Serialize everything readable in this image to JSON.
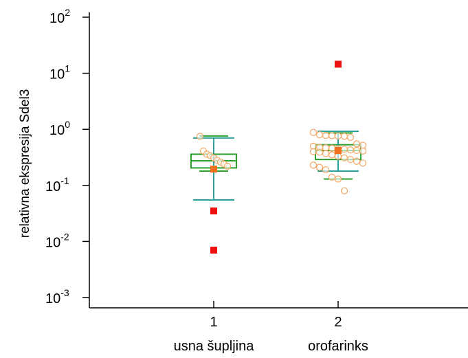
{
  "chart_data": {
    "type": "box",
    "title": "",
    "ylabel": "relativna ekspresija Sdel3",
    "yscale": "log",
    "ylim": [
      0.001,
      100
    ],
    "y_ticks": [
      {
        "base": "10",
        "exp": "-3",
        "value": 0.001
      },
      {
        "base": "10",
        "exp": "-2",
        "value": 0.01
      },
      {
        "base": "10",
        "exp": "-1",
        "value": 0.1
      },
      {
        "base": "10",
        "exp": "0",
        "value": 1
      },
      {
        "base": "10",
        "exp": "1",
        "value": 10
      },
      {
        "base": "10",
        "exp": "2",
        "value": 100
      }
    ],
    "x_ticks": [
      "1",
      "2"
    ],
    "categories": [
      "usna šupljina",
      "orofarinks"
    ],
    "grid": false,
    "colors": {
      "box": "#2ca02c",
      "whisker": "#2aa198",
      "point": "#f4a460",
      "median_marker": "#f07020",
      "outlier": "#ee1111"
    },
    "groups": [
      {
        "x": 1,
        "whisker_low": 0.055,
        "whisker_high": 0.7,
        "cap_low": 0.18,
        "cap_high": 0.76,
        "q1": 0.205,
        "median": 0.275,
        "q3": 0.36,
        "mean": 0.195,
        "points": [
          0.75,
          0.41,
          0.36,
          0.34,
          0.31,
          0.28,
          0.26,
          0.24,
          0.22
        ],
        "outliers": [
          0.035,
          0.007
        ]
      },
      {
        "x": 2,
        "whisker_low": 0.18,
        "whisker_high": 0.92,
        "cap_low": 0.13,
        "cap_high": 0.86,
        "q1": 0.29,
        "median": 0.42,
        "q3": 0.53,
        "mean": 0.42,
        "points": [
          0.88,
          0.8,
          0.78,
          0.77,
          0.76,
          0.75,
          0.72,
          0.55,
          0.52,
          0.5,
          0.48,
          0.47,
          0.46,
          0.45,
          0.44,
          0.43,
          0.42,
          0.41,
          0.4,
          0.39,
          0.37,
          0.35,
          0.33,
          0.31,
          0.29,
          0.27,
          0.25,
          0.23,
          0.21,
          0.19,
          0.14,
          0.13,
          0.08
        ],
        "outliers": [
          14.5
        ]
      }
    ]
  }
}
